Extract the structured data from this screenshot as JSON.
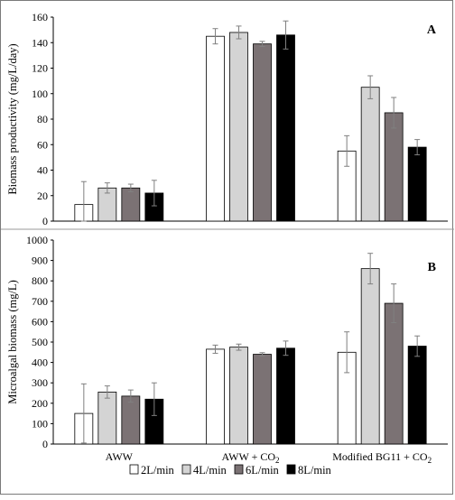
{
  "chart_data": [
    {
      "type": "bar",
      "panel_label": "A",
      "categories": [
        "AWW",
        "AWW + CO",
        "Modified BG11 + CO"
      ],
      "category_subscripts": [
        "",
        "2",
        "2"
      ],
      "series": [
        {
          "name": "2L/min",
          "values": [
            13,
            145,
            55
          ],
          "errors": [
            18,
            6,
            12
          ]
        },
        {
          "name": "4L/min",
          "values": [
            26,
            148,
            105
          ],
          "errors": [
            4,
            5,
            9
          ]
        },
        {
          "name": "6L/min",
          "values": [
            26,
            139,
            85
          ],
          "errors": [
            3,
            2,
            12
          ]
        },
        {
          "name": "8L/min",
          "values": [
            22,
            146,
            58
          ],
          "errors": [
            10,
            11,
            6
          ]
        }
      ],
      "ylabel": "Biomass productivity (mg/L/day)",
      "ylim": [
        0,
        160
      ],
      "yticks": [
        0,
        20,
        40,
        60,
        80,
        100,
        120,
        140,
        160
      ],
      "grid": false
    },
    {
      "type": "bar",
      "panel_label": "B",
      "categories": [
        "AWW",
        "AWW + CO",
        "Modified BG11 + CO"
      ],
      "category_subscripts": [
        "",
        "2",
        "2"
      ],
      "series": [
        {
          "name": "2L/min",
          "values": [
            150,
            465,
            450
          ],
          "errors": [
            145,
            20,
            100
          ]
        },
        {
          "name": "4L/min",
          "values": [
            255,
            475,
            860
          ],
          "errors": [
            30,
            15,
            75
          ]
        },
        {
          "name": "6L/min",
          "values": [
            235,
            440,
            690
          ],
          "errors": [
            30,
            8,
            95
          ]
        },
        {
          "name": "8L/min",
          "values": [
            220,
            470,
            480
          ],
          "errors": [
            80,
            35,
            50
          ]
        }
      ],
      "ylabel": "Microalgal biomass (mg/L)",
      "ylim": [
        0,
        1000
      ],
      "yticks": [
        0,
        100,
        200,
        300,
        400,
        500,
        600,
        700,
        800,
        900,
        1000
      ],
      "grid": false
    }
  ],
  "series_colors": [
    "#ffffff",
    "#d4d4d4",
    "#7b7274",
    "#000000"
  ],
  "legend_position": "bottom-center"
}
